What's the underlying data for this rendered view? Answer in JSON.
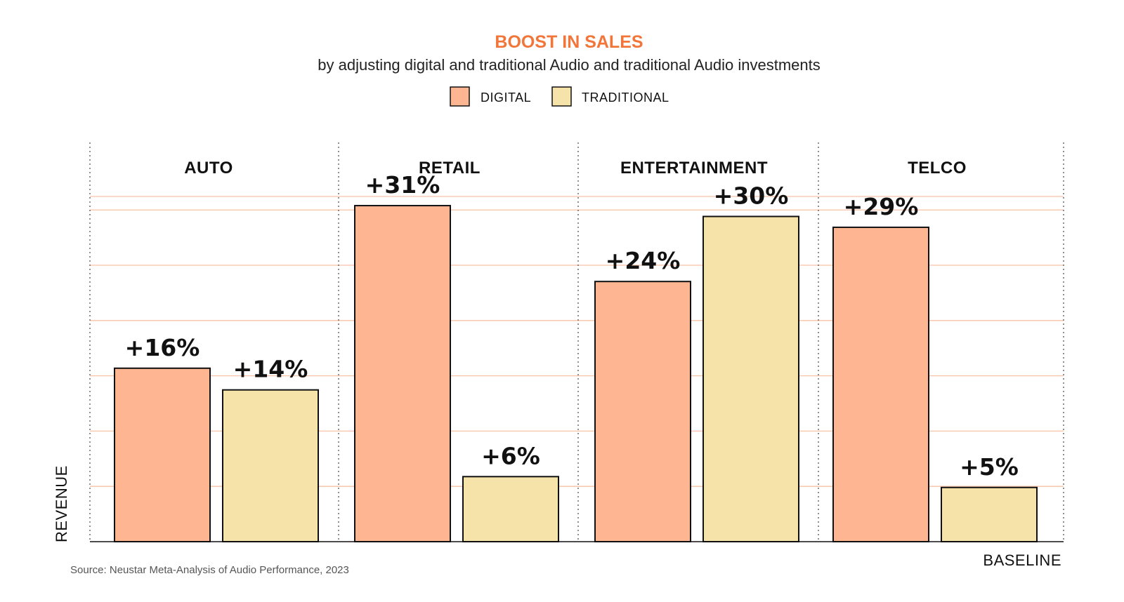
{
  "chart_data": {
    "type": "bar",
    "title": "BOOST IN SALES",
    "subtitle": "by adjusting digital and traditional Audio and traditional Audio investments",
    "categories": [
      "AUTO",
      "RETAIL",
      "ENTERTAINMENT",
      "TELCO"
    ],
    "series": [
      {
        "name": "DIGITAL",
        "values": [
          16,
          31,
          24,
          29
        ],
        "labels": [
          "+16%",
          "+31%",
          "+24%",
          "+29%"
        ]
      },
      {
        "name": "TRADITIONAL",
        "values": [
          14,
          6,
          30,
          5
        ],
        "labels": [
          "+14%",
          "+6%",
          "+30%",
          "+5%"
        ]
      }
    ],
    "ylabel": "REVENUE",
    "xlabel": "BASELINE",
    "ylim": [
      0,
      36
    ],
    "grid": true,
    "legend": "top-center",
    "source": "Source: Neustar Meta-Analysis of Audio Performance, 2023"
  },
  "colors": {
    "title": "#f2763a",
    "digital": "#fdb592",
    "traditional": "#f5e3a9",
    "grid": "#f7c2a6",
    "outline": "#111111",
    "divider": "#555555"
  }
}
